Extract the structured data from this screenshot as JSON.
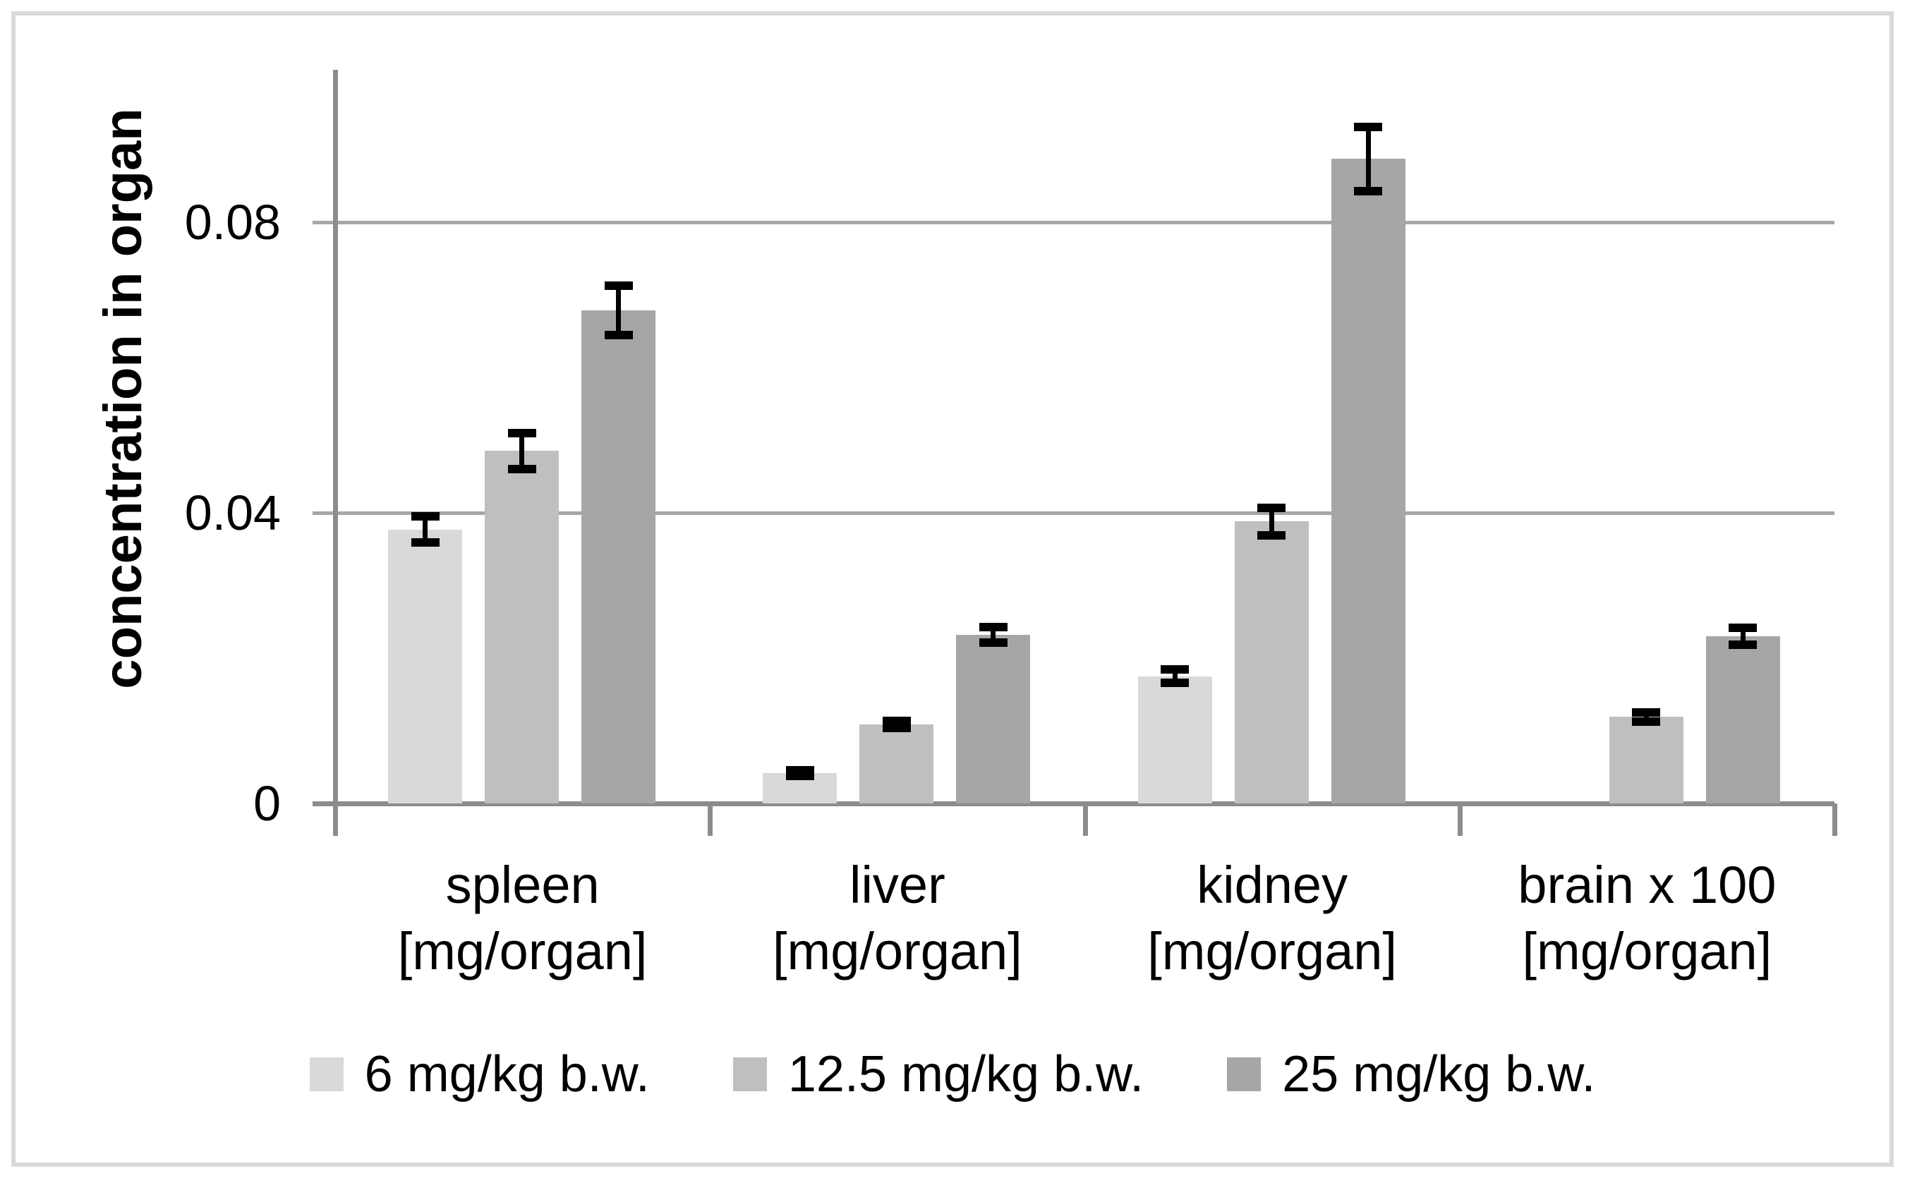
{
  "figure": {
    "background_color": "#ffffff",
    "border_color": "#d9d9d9",
    "axis_color": "#8c8c8c",
    "gridline_color": "#a6a6a6",
    "error_bar_color": "#000000",
    "text_color": "#000000"
  },
  "chart_data": {
    "type": "bar",
    "title": "",
    "ylabel": "concentration in organ",
    "xlabel": "",
    "ylim": [
      0,
      0.1
    ],
    "yticks": [
      0,
      0.04,
      0.08
    ],
    "ytick_labels": [
      "0",
      "0.04",
      "0.08"
    ],
    "grid": "horizontal",
    "legend_position": "bottom",
    "categories": [
      {
        "name": "spleen",
        "unit": "[mg/organ]"
      },
      {
        "name": "liver",
        "unit": "[mg/organ]"
      },
      {
        "name": "kidney",
        "unit": "[mg/organ]"
      },
      {
        "name": "brain x 100",
        "unit": "[mg/organ]"
      }
    ],
    "series": [
      {
        "name": "6 mg/kg b.w.",
        "color": "#d9d9d9",
        "values": [
          0.0377,
          0.0042,
          0.0175,
          null
        ],
        "errors": [
          0.0018,
          0.0004,
          0.0009,
          null
        ]
      },
      {
        "name": "12.5 mg/kg b.w.",
        "color": "#bfbfbf",
        "values": [
          0.0485,
          0.0109,
          0.0388,
          0.0119
        ],
        "errors": [
          0.0025,
          0.0005,
          0.0019,
          0.0006
        ]
      },
      {
        "name": "25 mg/kg b.w.",
        "color": "#a6a6a6",
        "values": [
          0.0679,
          0.0232,
          0.0887,
          0.023
        ],
        "errors": [
          0.0034,
          0.0011,
          0.0044,
          0.0012
        ]
      }
    ]
  }
}
